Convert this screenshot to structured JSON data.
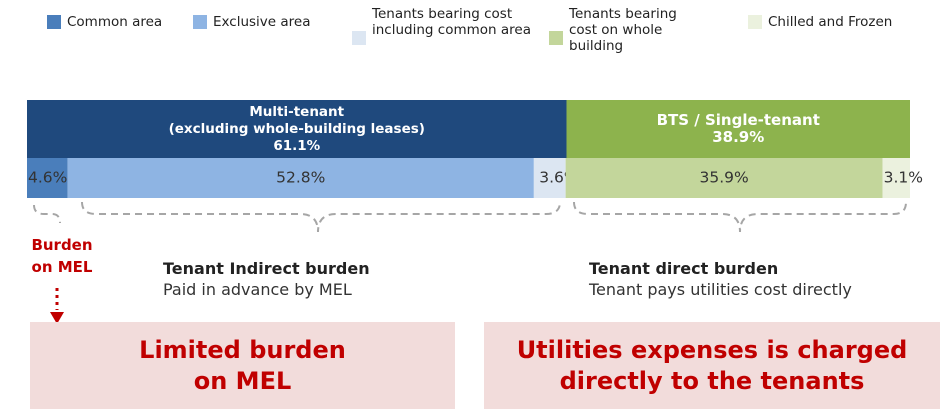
{
  "chart_data": {
    "type": "bar",
    "orientation": "horizontal",
    "stacked": true,
    "xlim": [
      0,
      100
    ],
    "series": [
      {
        "name": "Common area",
        "color": "#4a7ebb",
        "values": [
          4.6
        ],
        "value_labels": [
          "4.6%"
        ]
      },
      {
        "name": "Exclusive area",
        "color": "#8eb4e3",
        "values": [
          52.8
        ],
        "value_labels": [
          "52.8%"
        ]
      },
      {
        "name": "Tenants bearing cost including common area",
        "color": "#dce6f2",
        "values": [
          3.6
        ],
        "value_labels": [
          "3.6%"
        ]
      },
      {
        "name": "Tenants bearing cost on whole building",
        "color": "#c3d69b",
        "values": [
          35.9
        ],
        "value_labels": [
          "35.9%"
        ]
      },
      {
        "name": "Chilled and Frozen",
        "color": "#ebf1de",
        "values": [
          3.1
        ],
        "value_labels": [
          "3.1%"
        ]
      }
    ],
    "groups": [
      {
        "label": [
          "Multi-tenant",
          "(excluding whole-building leases)"
        ],
        "value": 61.1,
        "value_label": "61.1%",
        "color": "#1f497d"
      },
      {
        "label": [
          "BTS / Single-tenant"
        ],
        "value": 38.9,
        "value_label": "38.9%",
        "color": "#8db34d"
      }
    ],
    "annotations": {
      "burden": "Burden on MEL",
      "indirect_title": "Tenant Indirect burden",
      "indirect_text": "Paid in advance by MEL",
      "direct_title": "Tenant direct burden",
      "direct_text": "Tenant pays utilities cost directly",
      "box_left": "Limited burden on MEL",
      "box_right": "Utilities expenses is charged directly to the tenants"
    }
  }
}
